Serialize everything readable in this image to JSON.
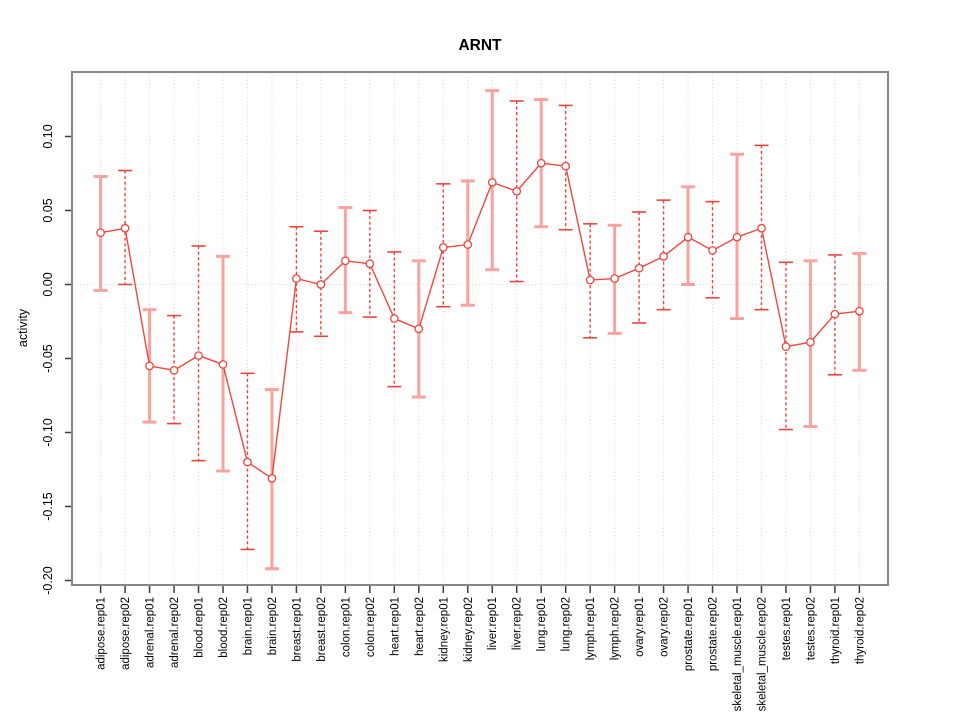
{
  "page": {
    "background": "#ffffff",
    "description": "R-style statistical plot of per-tissue activity with error bars"
  },
  "chart_data": {
    "type": "line",
    "title": "ARNT",
    "xlabel": "",
    "ylabel": "activity",
    "ylim": [
      -0.203,
      0.144
    ],
    "legend": "none",
    "grid": {
      "vertical": "dotted",
      "horizontal_zero_line": "dotted"
    },
    "marker": "open-circle",
    "categories": [
      "adipose.rep01",
      "adipose.rep02",
      "adrenal.rep01",
      "adrenal.rep02",
      "blood.rep01",
      "blood.rep02",
      "brain.rep01",
      "brain.rep02",
      "breast.rep01",
      "breast.rep02",
      "colon.rep01",
      "colon.rep02",
      "heart.rep01",
      "heart.rep02",
      "kidney.rep01",
      "kidney.rep02",
      "liver.rep01",
      "liver.rep02",
      "lung.rep01",
      "lung.rep02",
      "lymph.rep01",
      "lymph.rep02",
      "ovary.rep01",
      "ovary.rep02",
      "prostate.rep01",
      "prostate.rep02",
      "skeletal_muscle.rep01",
      "skeletal_muscle.rep02",
      "testes.rep01",
      "testes.rep02",
      "thyroid.rep01",
      "thyroid.rep02"
    ],
    "series": [
      {
        "name": "activity",
        "values": [
          0.035,
          0.038,
          -0.055,
          -0.058,
          -0.048,
          -0.054,
          -0.12,
          -0.131,
          0.004,
          0.0,
          0.016,
          0.014,
          -0.023,
          -0.03,
          0.025,
          0.027,
          0.069,
          0.063,
          0.082,
          0.08,
          0.003,
          0.004,
          0.011,
          0.019,
          0.032,
          0.023,
          0.032,
          0.038,
          -0.042,
          -0.039,
          -0.02,
          -0.018
        ],
        "error_lower": [
          -0.004,
          0.0,
          -0.093,
          -0.094,
          -0.119,
          -0.126,
          -0.179,
          -0.192,
          -0.032,
          -0.035,
          -0.019,
          -0.022,
          -0.069,
          -0.076,
          -0.015,
          -0.014,
          0.01,
          0.002,
          0.039,
          0.037,
          -0.036,
          -0.033,
          -0.026,
          -0.017,
          0.0,
          -0.009,
          -0.023,
          -0.017,
          -0.098,
          -0.096,
          -0.061,
          -0.058
        ],
        "error_upper": [
          0.073,
          0.077,
          -0.017,
          -0.021,
          0.026,
          0.019,
          -0.06,
          -0.071,
          0.039,
          0.036,
          0.052,
          0.05,
          0.022,
          0.016,
          0.068,
          0.07,
          0.131,
          0.124,
          0.125,
          0.121,
          0.041,
          0.04,
          0.049,
          0.057,
          0.066,
          0.056,
          0.088,
          0.094,
          0.015,
          0.016,
          0.02,
          0.021
        ],
        "error_bar_styles": [
          "light",
          "dark",
          "light",
          "dark",
          "dark",
          "light",
          "dark",
          "light",
          "dark",
          "dark",
          "light",
          "dark",
          "dark",
          "light",
          "dark",
          "light",
          "light",
          "dark",
          "light",
          "dark",
          "dark",
          "light",
          "dark",
          "dark",
          "light",
          "dark",
          "light",
          "dark",
          "dark",
          "light",
          "dark",
          "light"
        ]
      }
    ],
    "y_ticks": {
      "labels": [
        "0.10",
        "0.05",
        "0.00",
        "-0.05",
        "-0.10",
        "-0.15",
        "-0.20"
      ],
      "values": [
        0.1,
        0.05,
        0.0,
        -0.05,
        -0.1,
        -0.15,
        -0.2
      ]
    }
  },
  "colors": {
    "series_red": "#ef473e",
    "error_bar_light": "#f8a39d",
    "error_bar_dark": "#e8463d",
    "marker_fill": "#ffffff",
    "gridline": "#d6d6d6",
    "plot_border": "#878787",
    "tick": "#3d3d3d",
    "text": "#000000"
  }
}
